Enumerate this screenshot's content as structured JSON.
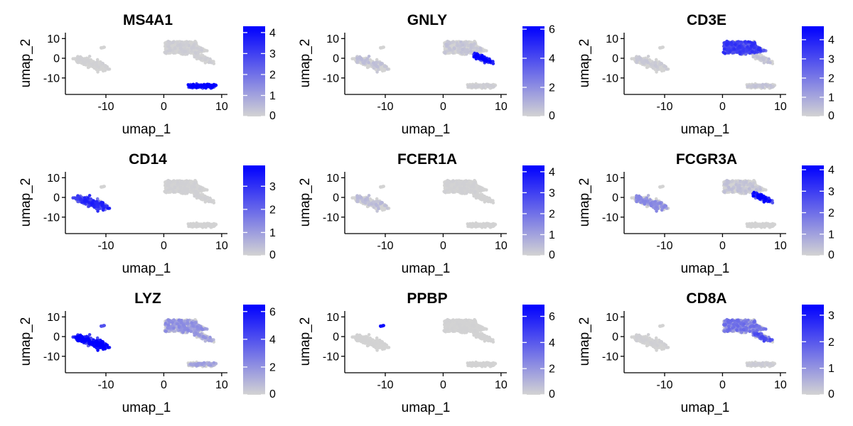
{
  "colors": {
    "low": "#D3D3D3",
    "high": "#0000FF"
  },
  "chart_data": [
    {
      "type": "scatter",
      "title": "MS4A1",
      "xlabel": "umap_1",
      "ylabel": "umap_2",
      "xlim": [
        -17,
        11
      ],
      "ylim": [
        -18,
        13
      ],
      "xticks": [
        -10,
        0,
        10
      ],
      "xtick_labels": [
        "-10",
        "0",
        "10"
      ],
      "yticks": [
        -10,
        0,
        10
      ],
      "ytick_labels": [
        "-10",
        "0",
        "10"
      ],
      "legend": "right",
      "colorbar": {
        "min": 0,
        "max": 4.3,
        "ticks": [
          0,
          1,
          2,
          3,
          4
        ],
        "tick_labels": [
          "0",
          "1",
          "2",
          "3",
          "4"
        ]
      },
      "expression": {
        "mono": 0.05,
        "tcell": 0.12,
        "nk": 0.1,
        "bcell": 3.4,
        "plat": 0
      }
    },
    {
      "type": "scatter",
      "title": "GNLY",
      "xlabel": "umap_1",
      "ylabel": "umap_2",
      "xlim": [
        -17,
        11
      ],
      "ylim": [
        -18,
        13
      ],
      "xticks": [
        -10,
        0,
        10
      ],
      "xtick_labels": [
        "-10",
        "0",
        "10"
      ],
      "yticks": [
        -10,
        0,
        10
      ],
      "ytick_labels": [
        "-10",
        "0",
        "10"
      ],
      "legend": "right",
      "colorbar": {
        "min": 0,
        "max": 6.2,
        "ticks": [
          0,
          2,
          4,
          6
        ],
        "tick_labels": [
          "0",
          "2",
          "4",
          "6"
        ]
      },
      "expression": {
        "mono": 0.5,
        "tcell": 0.4,
        "nk": 5.0,
        "bcell": 0.15,
        "plat": 0
      }
    },
    {
      "type": "scatter",
      "title": "CD3E",
      "xlabel": "umap_1",
      "ylabel": "umap_2",
      "xlim": [
        -17,
        11
      ],
      "ylim": [
        -18,
        13
      ],
      "xticks": [
        -10,
        0,
        10
      ],
      "xtick_labels": [
        "-10",
        "0",
        "10"
      ],
      "yticks": [
        -10,
        0,
        10
      ],
      "ytick_labels": [
        "-10",
        "0",
        "10"
      ],
      "legend": "right",
      "colorbar": {
        "min": 0,
        "max": 4.7,
        "ticks": [
          0,
          1,
          2,
          3,
          4
        ],
        "tick_labels": [
          "0",
          "1",
          "2",
          "3",
          "4"
        ]
      },
      "expression": {
        "mono": 0.2,
        "tcell": 2.6,
        "nk": 0.4,
        "bcell": 0.3,
        "plat": 0
      }
    },
    {
      "type": "scatter",
      "title": "CD14",
      "xlabel": "umap_1",
      "ylabel": "umap_2",
      "xlim": [
        -17,
        11
      ],
      "ylim": [
        -18,
        13
      ],
      "xticks": [
        -10,
        0,
        10
      ],
      "xtick_labels": [
        "-10",
        "0",
        "10"
      ],
      "yticks": [
        -10,
        0,
        10
      ],
      "ytick_labels": [
        "-10",
        "0",
        "10"
      ],
      "legend": "right",
      "colorbar": {
        "min": 0,
        "max": 3.9,
        "ticks": [
          0,
          1,
          2,
          3
        ],
        "tick_labels": [
          "0",
          "1",
          "2",
          "3"
        ]
      },
      "expression": {
        "mono": 2.4,
        "tcell": 0.05,
        "nk": 0.05,
        "bcell": 0.02,
        "plat": 0
      }
    },
    {
      "type": "scatter",
      "title": "FCER1A",
      "xlabel": "umap_1",
      "ylabel": "umap_2",
      "xlim": [
        -17,
        11
      ],
      "ylim": [
        -18,
        13
      ],
      "xticks": [
        -10,
        0,
        10
      ],
      "xtick_labels": [
        "-10",
        "0",
        "10"
      ],
      "yticks": [
        -10,
        0,
        10
      ],
      "ytick_labels": [
        "-10",
        "0",
        "10"
      ],
      "legend": "right",
      "colorbar": {
        "min": 0,
        "max": 4.3,
        "ticks": [
          0,
          1,
          2,
          3,
          4
        ],
        "tick_labels": [
          "0",
          "1",
          "2",
          "3",
          "4"
        ]
      },
      "expression": {
        "mono": 0.4,
        "tcell": 0.05,
        "nk": 0.02,
        "bcell": 0.02,
        "plat": 0
      }
    },
    {
      "type": "scatter",
      "title": "FCGR3A",
      "xlabel": "umap_1",
      "ylabel": "umap_2",
      "xlim": [
        -17,
        11
      ],
      "ylim": [
        -18,
        13
      ],
      "xticks": [
        -10,
        0,
        10
      ],
      "xtick_labels": [
        "-10",
        "0",
        "10"
      ],
      "yticks": [
        -10,
        0,
        10
      ],
      "ytick_labels": [
        "-10",
        "0",
        "10"
      ],
      "legend": "right",
      "colorbar": {
        "min": 0,
        "max": 4.2,
        "ticks": [
          0,
          1,
          2,
          3,
          4
        ],
        "tick_labels": [
          "0",
          "1",
          "2",
          "3",
          "4"
        ]
      },
      "expression": {
        "mono": 1.1,
        "tcell": 0.3,
        "nk": 3.2,
        "bcell": 0.02,
        "plat": 0
      }
    },
    {
      "type": "scatter",
      "title": "LYZ",
      "xlabel": "umap_1",
      "ylabel": "umap_2",
      "xlim": [
        -17,
        11
      ],
      "ylim": [
        -18,
        13
      ],
      "xticks": [
        -10,
        0,
        10
      ],
      "xtick_labels": [
        "-10",
        "0",
        "10"
      ],
      "yticks": [
        -10,
        0,
        10
      ],
      "ytick_labels": [
        "-10",
        "0",
        "10"
      ],
      "legend": "right",
      "colorbar": {
        "min": 0,
        "max": 6.5,
        "ticks": [
          0,
          2,
          4,
          6
        ],
        "tick_labels": [
          "0",
          "2",
          "4",
          "6"
        ]
      },
      "expression": {
        "mono": 5.5,
        "tcell": 1.6,
        "nk": 1.4,
        "bcell": 1.2,
        "plat": 4.0
      }
    },
    {
      "type": "scatter",
      "title": "PPBP",
      "xlabel": "umap_1",
      "ylabel": "umap_2",
      "xlim": [
        -17,
        11
      ],
      "ylim": [
        -18,
        13
      ],
      "xticks": [
        -10,
        0,
        10
      ],
      "xtick_labels": [
        "-10",
        "0",
        "10"
      ],
      "yticks": [
        -10,
        0,
        10
      ],
      "ytick_labels": [
        "-10",
        "0",
        "10"
      ],
      "legend": "right",
      "colorbar": {
        "min": 0,
        "max": 6.9,
        "ticks": [
          0,
          2,
          4,
          6
        ],
        "tick_labels": [
          "0",
          "2",
          "4",
          "6"
        ]
      },
      "expression": {
        "mono": 0.02,
        "tcell": 0.05,
        "nk": 0.02,
        "bcell": 0.02,
        "plat": 6.5
      }
    },
    {
      "type": "scatter",
      "title": "CD8A",
      "xlabel": "umap_1",
      "ylabel": "umap_2",
      "xlim": [
        -17,
        11
      ],
      "ylim": [
        -18,
        13
      ],
      "xticks": [
        -10,
        0,
        10
      ],
      "xtick_labels": [
        "-10",
        "0",
        "10"
      ],
      "yticks": [
        -10,
        0,
        10
      ],
      "ytick_labels": [
        "-10",
        "0",
        "10"
      ],
      "legend": "right",
      "colorbar": {
        "min": 0,
        "max": 3.4,
        "ticks": [
          0,
          1,
          2,
          3
        ],
        "tick_labels": [
          "0",
          "1",
          "2",
          "3"
        ]
      },
      "expression": {
        "mono": 0.05,
        "tcell": 1.2,
        "nk": 1.6,
        "bcell": 0.1,
        "plat": 0
      }
    }
  ]
}
